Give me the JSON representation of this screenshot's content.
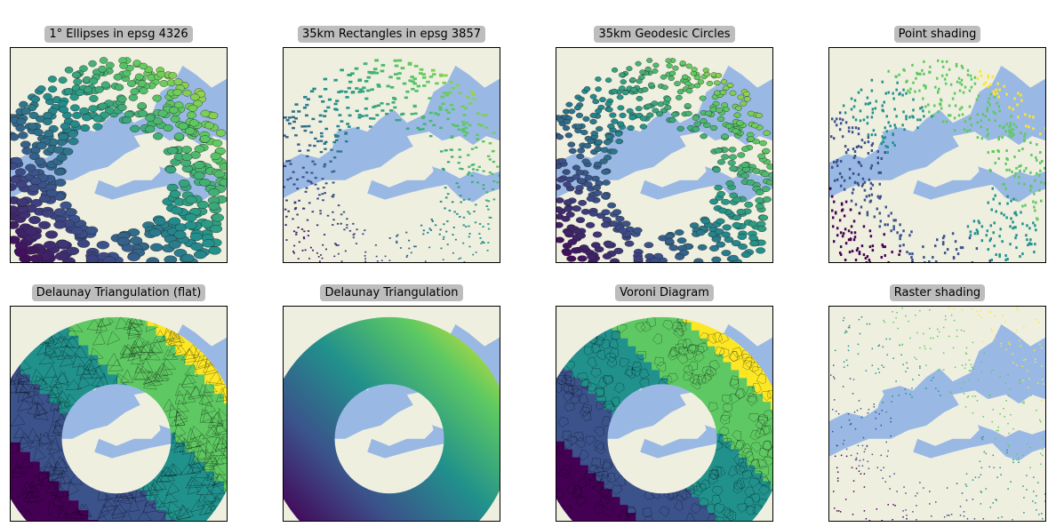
{
  "colors": {
    "ocean": "#99b9e4",
    "land": "#efefdf",
    "viridis": [
      "#440154",
      "#3b528b",
      "#21918c",
      "#5ec962",
      "#fde725"
    ]
  },
  "chart_data": [
    {
      "type": "map-scatter",
      "title": "1° Ellipses in epsg 4326",
      "marker": "ellipse"
    },
    {
      "type": "map-scatter",
      "title": "35km Rectangles in epsg 3857",
      "marker": "rectangle"
    },
    {
      "type": "map-scatter",
      "title": "35km Geodesic Circles",
      "marker": "circle"
    },
    {
      "type": "map-scatter",
      "title": "Point shading",
      "marker": "pixel"
    },
    {
      "type": "map-triangulation",
      "title": "Delaunay Triangulation (flat)",
      "style": "flat"
    },
    {
      "type": "map-triangulation",
      "title": "Delaunay Triangulation",
      "style": "smooth"
    },
    {
      "type": "map-voronoi",
      "title": "Voroni Diagram",
      "style": "voronoi"
    },
    {
      "type": "map-raster",
      "title": "Raster shading",
      "style": "raster"
    }
  ]
}
